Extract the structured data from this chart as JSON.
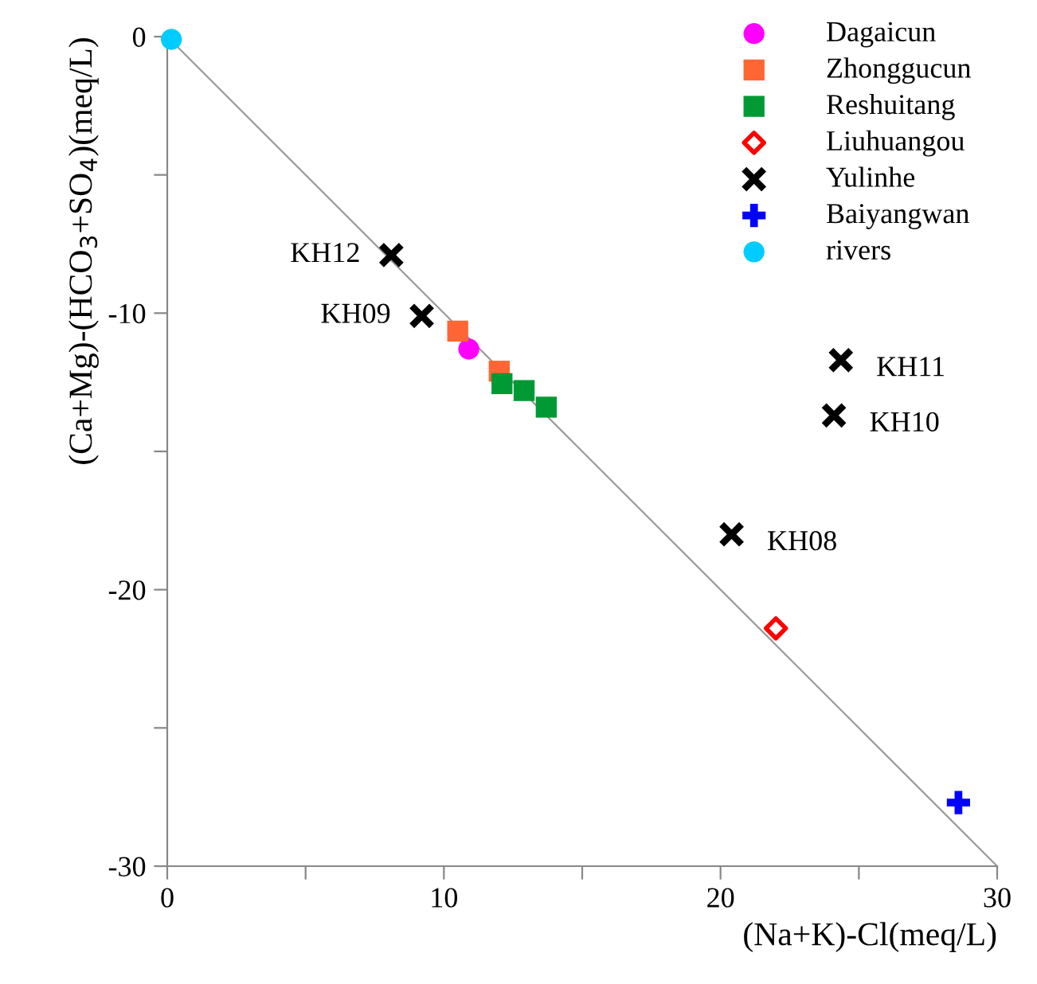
{
  "chart_data": {
    "type": "scatter",
    "xlabel": "(Na+K)-Cl(meq/L)",
    "ylabel": "(Ca+Mg)-(HCO$_{3}$+SO$_{4}$)(meq/L)",
    "xlim": [
      0,
      30
    ],
    "ylim": [
      -30,
      0
    ],
    "xticks": [
      0,
      {
        "value": 5,
        "label": null
      },
      10,
      {
        "value": 15,
        "label": null
      },
      20,
      {
        "value": 25,
        "label": null
      },
      30
    ],
    "yticks": [
      -30,
      {
        "value": -25,
        "label": null
      },
      -20,
      {
        "value": -15,
        "label": null
      },
      -10,
      {
        "value": -5,
        "label": null
      },
      0
    ],
    "grid": false,
    "legend": "top right",
    "series": [
      {
        "type": "line",
        "color": "#999999",
        "x": [
          0,
          30
        ],
        "values": [
          0,
          -30
        ],
        "marker": "none"
      },
      {
        "name": "Dagaicun",
        "color": "#ff00ff",
        "marker": "circle",
        "x": [
          10.9
        ],
        "values": [
          -11.3
        ]
      },
      {
        "name": "Zhonggucun",
        "color": "#ff6633",
        "marker": "square",
        "x": [
          10.5,
          12.0
        ],
        "values": [
          -10.65,
          -12.1
        ]
      },
      {
        "name": "Reshuitang",
        "color": "#009933",
        "marker": "square",
        "x": [
          12.1,
          12.9,
          13.7
        ],
        "values": [
          -12.55,
          -12.8,
          -13.4
        ]
      },
      {
        "name": "Liuhuangou",
        "color": "#ff0000",
        "marker": "diamond",
        "x": [
          22.0
        ],
        "values": [
          -21.4
        ]
      },
      {
        "name": "Yulinhe",
        "color": "#000000",
        "marker": "cross",
        "x": [
          8.1,
          9.2,
          24.35,
          24.1,
          20.4
        ],
        "values": [
          -7.9,
          -10.1,
          -11.7,
          -13.7,
          -18.0
        ]
      },
      {
        "name": "Baiyangwan",
        "color": "#0000ff",
        "marker": "plus",
        "x": [
          28.6
        ],
        "values": [
          -27.7
        ]
      },
      {
        "name": "rivers",
        "color": "#00ccff",
        "marker": "circle",
        "x": [
          0.15
        ],
        "values": [
          -0.1
        ]
      }
    ],
    "annotations": [
      {
        "text": "KH12",
        "x": 8.1,
        "y": -7.9
      },
      {
        "text": "KH09",
        "x": 9.2,
        "y": -10.1
      },
      {
        "text": "KH11",
        "x": 24.35,
        "y": -11.7
      },
      {
        "text": "KH10",
        "x": 24.1,
        "y": -13.7
      },
      {
        "text": "KH08",
        "x": 20.4,
        "y": -18.0
      }
    ]
  }
}
